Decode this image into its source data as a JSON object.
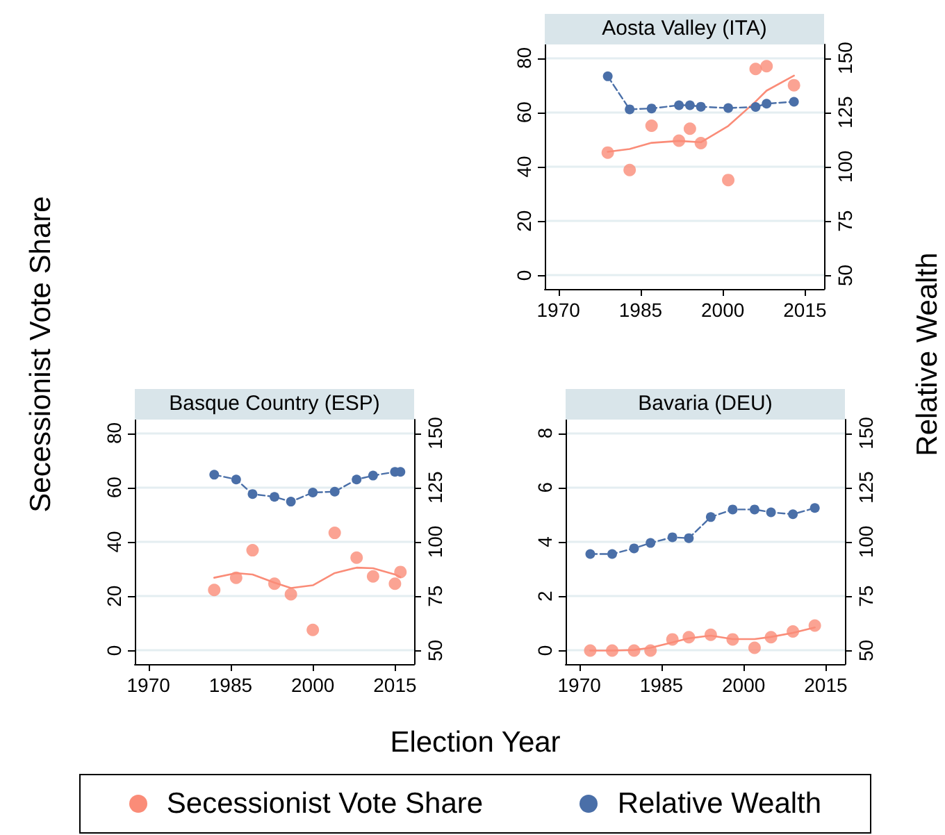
{
  "chart_data": [
    {
      "type": "scatter",
      "title": "Aosta Valley (ITA)",
      "xlabel": "Election Year",
      "ylabel": "Secessionist Vote Share",
      "y2label": "Relative Wealth",
      "legend": "bottom",
      "grid": "y",
      "xlim": [
        1967.5,
        2018.5
      ],
      "xticks": [
        1970,
        1985,
        2000,
        2015
      ],
      "ylim": [
        -5,
        85
      ],
      "yticks": [
        0,
        20,
        40,
        60,
        80
      ],
      "y2lim": [
        43.75,
        156.25
      ],
      "y2ticks": [
        50,
        75,
        100,
        125,
        150
      ],
      "series": [
        {
          "name": "Secessionist Vote Share",
          "marker": "circle",
          "color": "#fa8c78",
          "x": [
            1979,
            1983,
            1987,
            1992,
            1994,
            1996,
            2001,
            2006,
            2008,
            2013
          ],
          "values": [
            45.2,
            38.8,
            55.1,
            49.6,
            54,
            48.7,
            35.1,
            76,
            77,
            70
          ]
        },
        {
          "type": "line",
          "marker": "none",
          "line_style": "solid",
          "color": "#fa8c78",
          "x": [
            1979,
            1983,
            1987,
            1992,
            1996,
            2001,
            2006,
            2008,
            2013
          ],
          "values": [
            45.5,
            46.5,
            48.8,
            49.5,
            49,
            55,
            64,
            68,
            73.5
          ]
        },
        {
          "name": "Relative Wealth",
          "type": "line",
          "axis": "y2",
          "marker": "circle",
          "line_style": "dashed",
          "color": "#4a6fa8",
          "x": [
            1979,
            1983,
            1987,
            1992,
            1994,
            1996,
            2001,
            2006,
            2008,
            2013
          ],
          "values": [
            141.6,
            126.4,
            126.8,
            128.3,
            128.3,
            127.6,
            127,
            127.5,
            129,
            129.9
          ]
        }
      ]
    },
    {
      "type": "scatter",
      "title": "Basque Country (ESP)",
      "grid": "y",
      "xlim": [
        1967.5,
        2018.5
      ],
      "xticks": [
        1970,
        1985,
        2000,
        2015
      ],
      "ylim": [
        -5,
        85
      ],
      "yticks": [
        0,
        20,
        40,
        60,
        80
      ],
      "y2lim": [
        43.75,
        156.25
      ],
      "y2ticks": [
        50,
        75,
        100,
        125,
        150
      ],
      "series": [
        {
          "marker": "circle",
          "color": "#fa8c78",
          "x": [
            1982,
            1986,
            1989,
            1993,
            1996,
            2000,
            2004,
            2008,
            2011,
            2015,
            2016
          ],
          "values": [
            22.3,
            26.8,
            36.9,
            24.6,
            20.7,
            7.6,
            43.3,
            34.2,
            27.3,
            24.6,
            28.9
          ]
        },
        {
          "type": "line",
          "marker": "none",
          "line_style": "solid",
          "color": "#fa8c78",
          "x": [
            1982,
            1986,
            1989,
            1993,
            1996,
            2000,
            2004,
            2008,
            2011,
            2015,
            2016
          ],
          "values": [
            26.8,
            28.5,
            28,
            25,
            23,
            24,
            28.5,
            30.5,
            30.3,
            28,
            27
          ]
        },
        {
          "type": "line",
          "axis": "y2",
          "marker": "circle",
          "line_style": "dashed",
          "color": "#4a6fa8",
          "x": [
            1982,
            1986,
            1989,
            1993,
            1996,
            2000,
            2004,
            2008,
            2011,
            2015,
            2016
          ],
          "values": [
            130.9,
            128.7,
            122,
            120.7,
            118.5,
            122.7,
            123.1,
            128.7,
            130.5,
            132.2,
            132.2
          ]
        }
      ]
    },
    {
      "type": "scatter",
      "title": "Bavaria (DEU)",
      "grid": "y",
      "xlim": [
        1967.5,
        2018.5
      ],
      "xticks": [
        1970,
        1985,
        2000,
        2015
      ],
      "ylim": [
        -0.5,
        8.5
      ],
      "yticks": [
        0,
        2,
        4,
        6,
        8
      ],
      "y2lim": [
        43.75,
        156.25
      ],
      "y2ticks": [
        50,
        75,
        100,
        125,
        150
      ],
      "series": [
        {
          "marker": "circle",
          "color": "#fa8c78",
          "x": [
            1972,
            1976,
            1980,
            1983,
            1987,
            1990,
            1994,
            1998,
            2002,
            2005,
            2009,
            2013
          ],
          "values": [
            0,
            0,
            0,
            0,
            0.41,
            0.49,
            0.58,
            0.41,
            0.1,
            0.49,
            0.7,
            0.92
          ]
        },
        {
          "type": "line",
          "marker": "none",
          "line_style": "solid",
          "color": "#fa8c78",
          "x": [
            1972,
            1976,
            1980,
            1983,
            1987,
            1990,
            1994,
            1998,
            2002,
            2005,
            2009,
            2013
          ],
          "values": [
            0,
            0,
            0.02,
            0.1,
            0.3,
            0.45,
            0.55,
            0.42,
            0.42,
            0.5,
            0.65,
            0.85
          ]
        },
        {
          "type": "line",
          "axis": "y2",
          "marker": "circle",
          "line_style": "dashed",
          "color": "#4a6fa8",
          "x": [
            1972,
            1976,
            1980,
            1983,
            1987,
            1990,
            1994,
            1998,
            2002,
            2005,
            2009,
            2013
          ],
          "values": [
            94.4,
            94.4,
            97,
            99.5,
            102.1,
            101.7,
            111.4,
            114.9,
            114.9,
            113.6,
            112.7,
            115.6
          ]
        }
      ]
    }
  ]
}
